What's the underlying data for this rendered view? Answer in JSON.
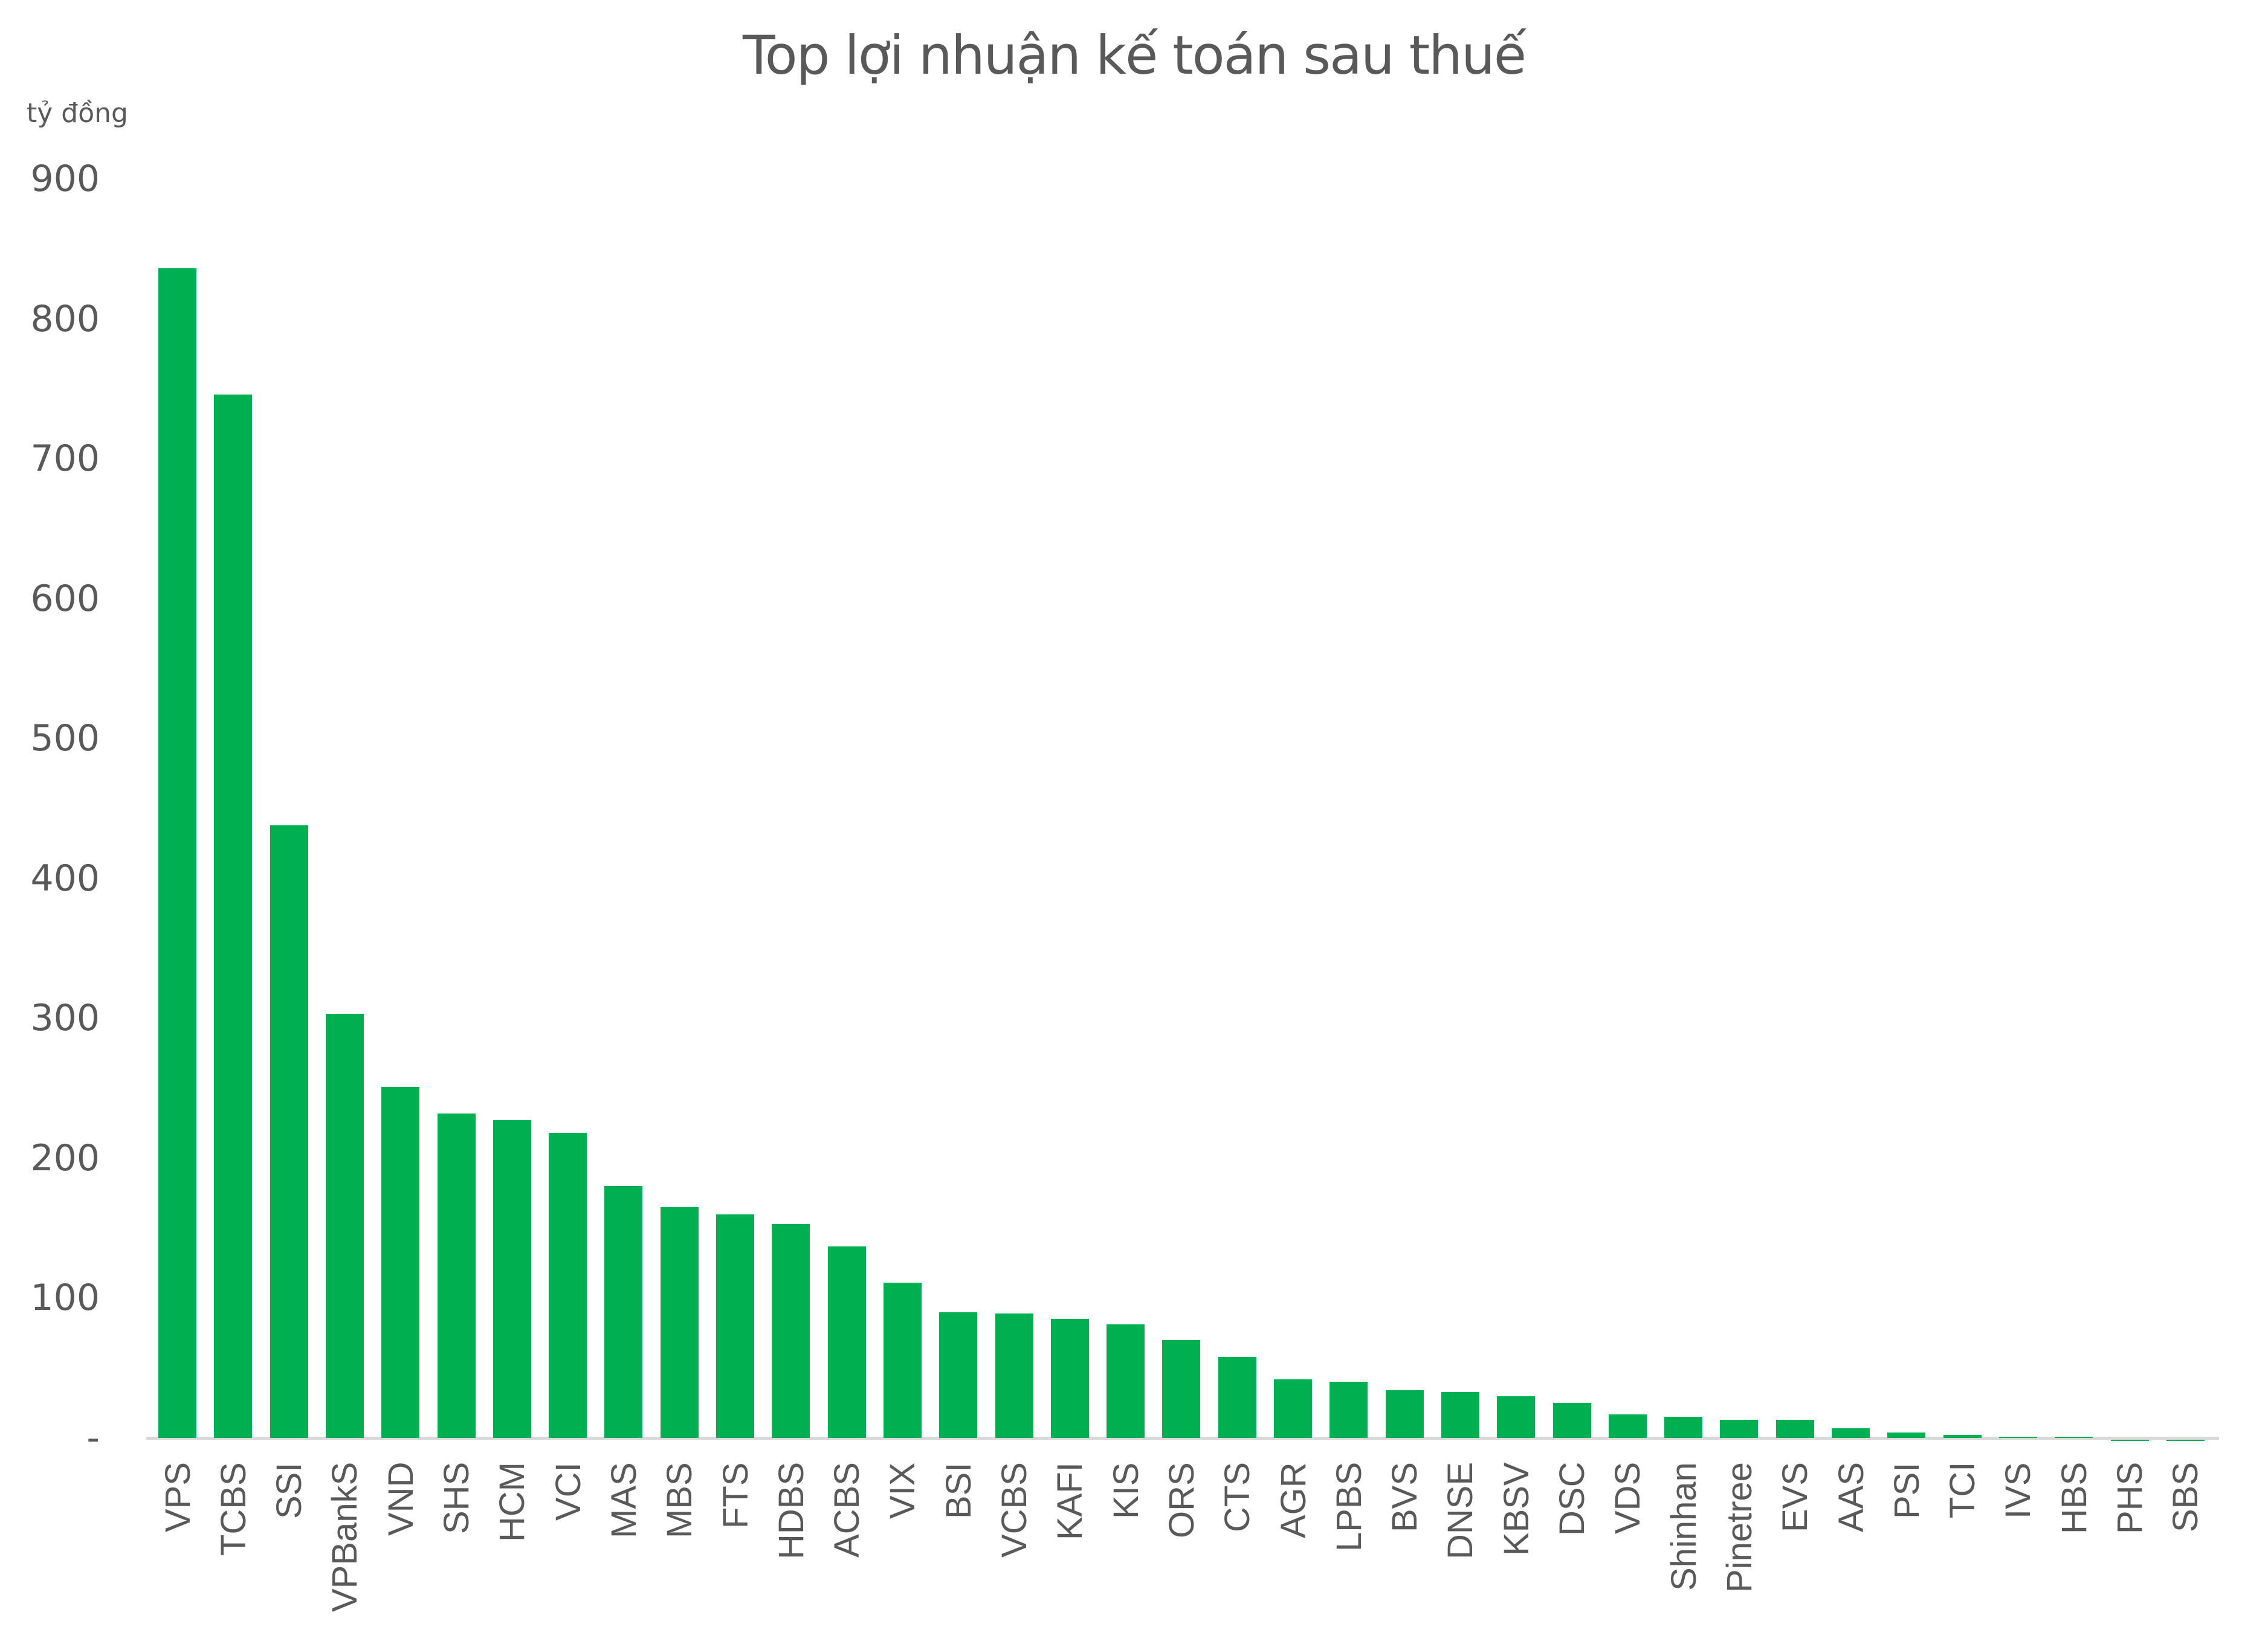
{
  "chart_data": {
    "type": "bar",
    "title": "Top lợi nhuận kế toán sau thuế",
    "ylabel": "tỷ đồng",
    "xlabel": "",
    "ylim": [
      0,
      900
    ],
    "yticks": [
      "-",
      "100",
      "200",
      "300",
      "400",
      "500",
      "600",
      "700",
      "800",
      "900"
    ],
    "ytick_values": [
      0,
      100,
      200,
      300,
      400,
      500,
      600,
      700,
      800,
      900
    ],
    "grid": false,
    "legend": null,
    "bar_color": "#00b050",
    "categories": [
      "VPS",
      "TCBS",
      "SSI",
      "VPBankS",
      "VND",
      "SHS",
      "HCM",
      "VCI",
      "MAS",
      "MBS",
      "FTS",
      "HDBS",
      "ACBS",
      "VIX",
      "BSI",
      "VCBS",
      "KAFI",
      "KIS",
      "ORS",
      "CTS",
      "AGR",
      "LPBS",
      "BVS",
      "DNSE",
      "KBSV",
      "DSC",
      "VDS",
      "Shinhan",
      "Pinetree",
      "EVS",
      "AAS",
      "PSI",
      "TCI",
      "IVS",
      "HBS",
      "PHS",
      "SBS"
    ],
    "values": [
      836,
      746,
      438,
      303,
      251,
      232,
      227,
      218,
      180,
      165,
      160,
      153,
      137,
      111,
      90,
      89,
      85,
      81,
      70,
      58,
      42,
      40,
      34,
      33,
      30,
      25,
      17,
      15,
      13,
      13,
      7,
      4,
      2,
      1,
      0.5,
      -1,
      -1
    ]
  }
}
